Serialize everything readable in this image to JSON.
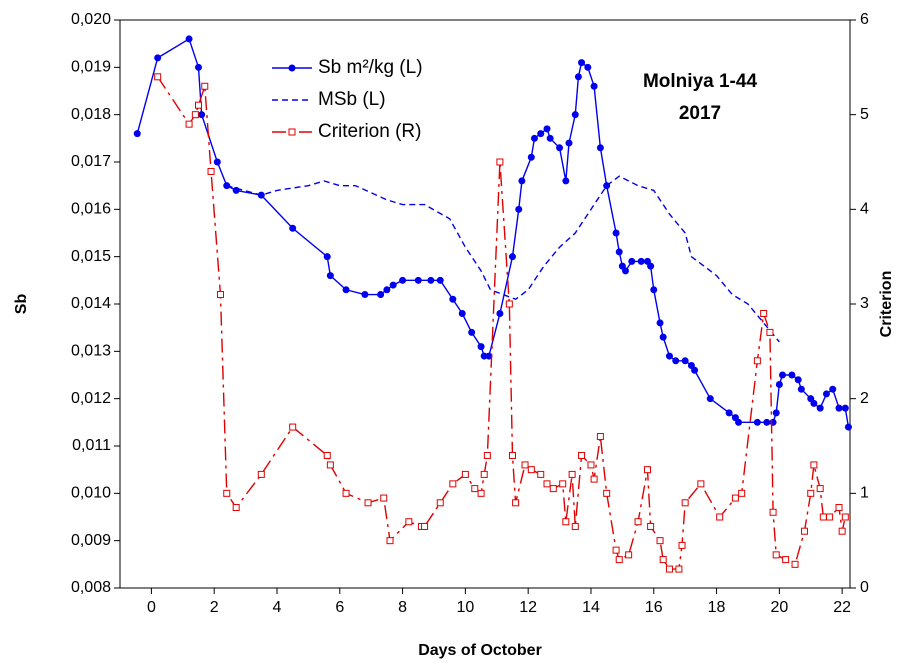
{
  "chart_data": {
    "type": "line",
    "title": "Molniya 1-44",
    "subtitle": "2017",
    "x_label": "Days of October",
    "y_label": "Sb",
    "y2_label": "Criterion",
    "xlim": [
      -1,
      22.25
    ],
    "xticks": [
      0,
      2,
      4,
      6,
      8,
      10,
      12,
      14,
      16,
      18,
      20,
      22
    ],
    "ylim": [
      0.008,
      0.02
    ],
    "yticks": [
      {
        "value": 0.008,
        "label": "0,008"
      },
      {
        "value": 0.009,
        "label": "0,009"
      },
      {
        "value": 0.01,
        "label": "0,010"
      },
      {
        "value": 0.011,
        "label": "0,011"
      },
      {
        "value": 0.012,
        "label": "0,012"
      },
      {
        "value": 0.013,
        "label": "0,013"
      },
      {
        "value": 0.014,
        "label": "0,014"
      },
      {
        "value": 0.015,
        "label": "0,015"
      },
      {
        "value": 0.016,
        "label": "0,016"
      },
      {
        "value": 0.017,
        "label": "0,017"
      },
      {
        "value": 0.018,
        "label": "0,018"
      },
      {
        "value": 0.019,
        "label": "0,019"
      },
      {
        "value": 0.02,
        "label": "0,020"
      }
    ],
    "y2lim": [
      0,
      6
    ],
    "y2ticks": [
      0,
      1,
      2,
      3,
      4,
      5,
      6
    ],
    "series": [
      {
        "name": "Sb m²/kg (L)",
        "color": "#0000ee",
        "style": "solid",
        "marker": "circle",
        "x": [
          -0.45,
          0.2,
          1.2,
          1.5,
          1.6,
          2.1,
          2.4,
          2.7,
          3.5,
          4.5,
          5.6,
          5.7,
          6.2,
          6.8,
          7.3,
          7.5,
          7.7,
          8.0,
          8.5,
          8.9,
          9.2,
          9.6,
          9.9,
          10.2,
          10.5,
          10.6,
          10.75,
          11.1,
          11.5,
          11.7,
          11.8,
          12.1,
          12.2,
          12.4,
          12.6,
          12.7,
          13.0,
          13.2,
          13.3,
          13.5,
          13.6,
          13.7,
          13.9,
          14.1,
          14.3,
          14.5,
          14.8,
          14.9,
          15.0,
          15.1,
          15.3,
          15.6,
          15.8,
          15.9,
          16.0,
          16.2,
          16.3,
          16.5,
          16.7,
          17.0,
          17.2,
          17.3,
          17.8,
          18.4,
          18.6,
          18.7,
          19.3,
          19.6,
          19.8,
          19.9,
          20.0,
          20.1,
          20.4,
          20.6,
          20.7,
          21.0,
          21.1,
          21.3,
          21.5,
          21.7,
          21.9,
          22.1,
          22.2
        ],
        "values": [
          0.0176,
          0.0192,
          0.0196,
          0.019,
          0.018,
          0.017,
          0.0165,
          0.0164,
          0.0163,
          0.0156,
          0.015,
          0.0146,
          0.0143,
          0.0142,
          0.0142,
          0.0143,
          0.0144,
          0.0145,
          0.0145,
          0.0145,
          0.0145,
          0.0141,
          0.0138,
          0.0134,
          0.0131,
          0.0129,
          0.0129,
          0.0138,
          0.015,
          0.016,
          0.0166,
          0.0171,
          0.0175,
          0.0176,
          0.0177,
          0.0175,
          0.0173,
          0.0166,
          0.0174,
          0.018,
          0.0188,
          0.0191,
          0.019,
          0.0186,
          0.0173,
          0.0165,
          0.0155,
          0.0151,
          0.0148,
          0.0147,
          0.0149,
          0.0149,
          0.0149,
          0.0148,
          0.0143,
          0.0136,
          0.0133,
          0.0129,
          0.0128,
          0.0128,
          0.0127,
          0.0126,
          0.012,
          0.0117,
          0.0116,
          0.0115,
          0.0115,
          0.0115,
          0.0115,
          0.0117,
          0.0123,
          0.0125,
          0.0125,
          0.0124,
          0.0122,
          0.012,
          0.0119,
          0.0118,
          0.0121,
          0.0122,
          0.0118,
          0.0118,
          0.0114
        ]
      },
      {
        "name": "MSb (L)",
        "color": "#0000ee",
        "style": "dashed",
        "marker": "none",
        "x": [
          2.4,
          3.5,
          4.0,
          5.0,
          5.5,
          6.0,
          6.5,
          7.5,
          8.0,
          8.7,
          9.5,
          10.0,
          10.5,
          10.8,
          11.2,
          11.6,
          12.0,
          12.5,
          13.0,
          13.5,
          14.0,
          14.5,
          14.9,
          15.5,
          16.0,
          16.5,
          17.0,
          17.2,
          18.0,
          18.5,
          19.0,
          19.5,
          20.0
        ],
        "values": [
          0.0165,
          0.0163,
          0.0164,
          0.0165,
          0.0166,
          0.0165,
          0.0165,
          0.0162,
          0.0161,
          0.0161,
          0.0158,
          0.0152,
          0.0147,
          0.0143,
          0.0142,
          0.0141,
          0.0143,
          0.0148,
          0.0152,
          0.0155,
          0.016,
          0.0165,
          0.0167,
          0.0165,
          0.0164,
          0.0159,
          0.0155,
          0.015,
          0.0146,
          0.0142,
          0.014,
          0.0136,
          0.0132
        ]
      },
      {
        "name": "Criterion (R)",
        "color": "#e00000",
        "style": "dashdot",
        "marker": "square",
        "axis": "y2",
        "x": [
          0.2,
          1.2,
          1.4,
          1.5,
          1.7,
          1.9,
          2.2,
          2.4,
          2.7,
          3.5,
          4.5,
          5.6,
          5.7,
          6.2,
          6.9,
          7.4,
          7.6,
          8.2,
          8.6,
          8.7,
          9.2,
          9.6,
          10.0,
          10.3,
          10.5,
          10.6,
          10.7,
          11.1,
          11.4,
          11.5,
          11.6,
          11.9,
          12.1,
          12.4,
          12.6,
          12.8,
          13.1,
          13.2,
          13.4,
          13.5,
          13.7,
          14.0,
          14.1,
          14.3,
          14.5,
          14.8,
          14.9,
          15.2,
          15.5,
          15.8,
          15.9,
          16.2,
          16.3,
          16.5,
          16.8,
          16.9,
          17.0,
          17.5,
          18.1,
          18.6,
          18.8,
          19.3,
          19.5,
          19.7,
          19.8,
          19.9,
          20.2,
          20.5,
          20.8,
          21.0,
          21.1,
          21.3,
          21.4,
          21.6,
          21.9,
          22.0,
          22.1
        ],
        "values": [
          5.4,
          4.9,
          5.0,
          5.1,
          5.3,
          4.4,
          3.1,
          1.0,
          0.85,
          1.2,
          1.7,
          1.4,
          1.3,
          1.0,
          0.9,
          0.95,
          0.5,
          0.7,
          0.65,
          0.65,
          0.9,
          1.1,
          1.2,
          1.05,
          1.0,
          1.2,
          1.4,
          4.5,
          3.0,
          1.4,
          0.9,
          1.3,
          1.25,
          1.2,
          1.1,
          1.05,
          1.1,
          0.7,
          1.2,
          0.65,
          1.4,
          1.3,
          1.15,
          1.6,
          1.0,
          0.4,
          0.3,
          0.35,
          0.7,
          1.25,
          0.65,
          0.5,
          0.3,
          0.2,
          0.2,
          0.45,
          0.9,
          1.1,
          0.75,
          0.95,
          1.0,
          2.4,
          2.9,
          2.7,
          0.8,
          0.35,
          0.3,
          0.25,
          0.6,
          1.0,
          1.3,
          1.05,
          0.75,
          0.75,
          0.85,
          0.6,
          0.75
        ]
      }
    ]
  }
}
